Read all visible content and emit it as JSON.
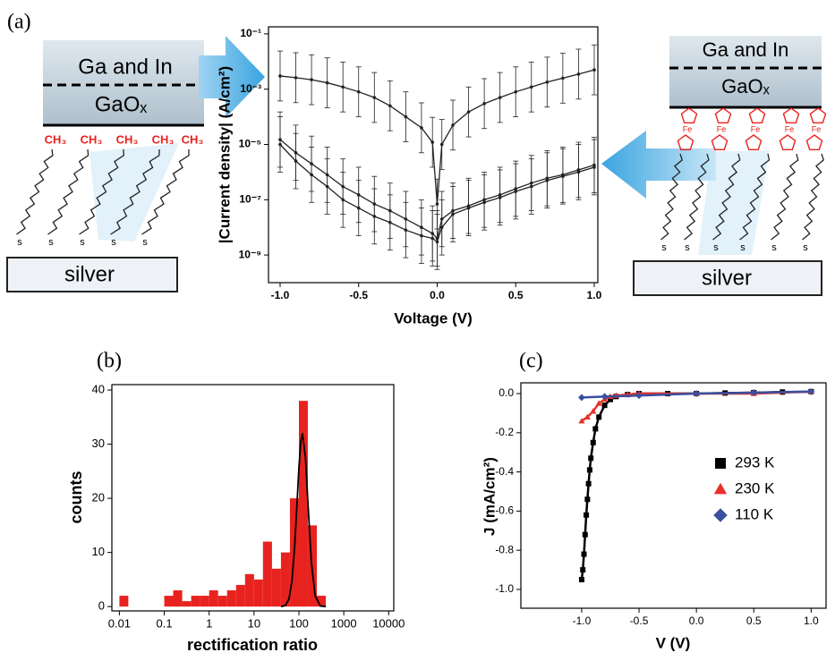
{
  "chart_data": [
    {
      "type": "line",
      "panel": "(a)",
      "xlabel": "Voltage (V)",
      "ylabel": "|Current density| (A/cm²)",
      "ylog": true,
      "xlim": [
        -1.074,
        1.023
      ],
      "ylim": [
        1e-10,
        0.18
      ],
      "xticks": [
        {
          "value": -1,
          "label": "-1.0"
        },
        {
          "value": -0.5,
          "label": "-0.5"
        },
        {
          "value": 0,
          "label": "0.0"
        },
        {
          "value": 0.5,
          "label": "0.5"
        },
        {
          "value": 1,
          "label": "1.0"
        }
      ],
      "yticks": [
        {
          "value": 0.1,
          "label": "10⁻¹"
        },
        {
          "value": 0.001,
          "label": "10⁻³"
        },
        {
          "value": 1e-05,
          "label": "10⁻⁵"
        },
        {
          "value": 1e-07,
          "label": "10⁻⁷"
        },
        {
          "value": 1e-09,
          "label": "10⁻⁹"
        }
      ],
      "x": [
        -1,
        -0.9,
        -0.8,
        -0.7,
        -0.6,
        -0.5,
        -0.4,
        -0.3,
        -0.2,
        -0.1,
        -0.03,
        0,
        0.03,
        0.1,
        0.2,
        0.3,
        0.4,
        0.5,
        0.6,
        0.7,
        0.8,
        0.9,
        1
      ],
      "series": [
        {
          "color": "#222222",
          "error_factor": 8,
          "values": [
            0.003,
            0.0026,
            0.0022,
            0.0017,
            0.0012,
            0.0008,
            0.0005,
            0.00025,
            0.0001,
            4e-05,
            1.2e-05,
            7e-08,
            1e-05,
            5e-05,
            0.00015,
            0.0003,
            0.0005,
            0.0008,
            0.0012,
            0.0018,
            0.0025,
            0.0035,
            0.005
          ]
        },
        {
          "color": "#222222",
          "error_factor": 10,
          "values": [
            1.5e-05,
            5e-06,
            2e-06,
            8e-07,
            3e-07,
            1.5e-07,
            7e-08,
            4e-08,
            2e-08,
            1e-08,
            6e-09,
            4e-09,
            2e-08,
            4e-08,
            6e-08,
            1e-07,
            1.5e-07,
            2.5e-07,
            4e-07,
            6e-07,
            8e-07,
            1.2e-06,
            1.8e-06
          ]
        },
        {
          "color": "#222222",
          "error_factor": 10,
          "values": [
            1e-05,
            2.5e-06,
            8e-07,
            3e-07,
            1e-07,
            5e-08,
            2.5e-08,
            1.5e-08,
            8e-09,
            5e-09,
            4e-09,
            3e-09,
            1e-08,
            3e-08,
            5e-08,
            8e-08,
            1.2e-07,
            2e-07,
            3e-07,
            5e-07,
            7e-07,
            1e-06,
            1.5e-06
          ]
        }
      ],
      "annotations": {
        "left_top": "Ga and In",
        "left_oxide": "GaOₓ",
        "left_groups": [
          "CH₃",
          "CH₃",
          "CH₃",
          "CH₃",
          "CH₃"
        ],
        "left_anchors": [
          "s",
          "s",
          "s",
          "s",
          "s"
        ],
        "left_substrate": "silver",
        "right_top": "Ga and In",
        "right_oxide": "GaOₓ",
        "right_fe": [
          "Fe",
          "Fe",
          "Fe",
          "Fe",
          "Fe"
        ],
        "right_anchors": [
          "s",
          "s",
          "s",
          "s",
          "s",
          "s"
        ],
        "right_substrate": "silver"
      }
    },
    {
      "type": "histogram",
      "panel": "(b)",
      "xlabel": "rectification ratio",
      "ylabel": "counts",
      "xlog": true,
      "xlim": [
        0.0068,
        13000
      ],
      "ylim": [
        -0.8,
        41
      ],
      "xticks": [
        0.01,
        0.1,
        1,
        10,
        100,
        1000,
        10000
      ],
      "yticks": [
        0,
        10,
        20,
        30,
        40
      ],
      "bins": [
        0.01,
        0.0158,
        0.0251,
        0.0398,
        0.0631,
        0.1,
        0.158,
        0.251,
        0.398,
        0.631,
        1,
        1.58,
        2.51,
        3.98,
        6.31,
        10,
        15.8,
        25.1,
        39.8,
        63.1,
        100,
        158,
        251,
        398,
        631,
        1000
      ],
      "values": [
        2,
        0,
        0,
        0,
        0,
        2,
        3,
        1,
        2,
        2,
        3,
        2,
        3,
        4,
        6,
        5,
        12,
        7,
        10,
        20,
        38,
        15,
        2,
        0,
        0
      ],
      "color": "#e8231f",
      "fit": {
        "color": "#000000",
        "x": [
          40,
          50,
          60,
          70,
          80,
          90,
          100,
          110,
          120,
          140,
          160,
          190,
          230,
          300,
          400
        ],
        "values": [
          0,
          0.2,
          1.4,
          4.7,
          10.9,
          18.5,
          25.6,
          30.4,
          32,
          27.5,
          18.7,
          8.1,
          2,
          0.1,
          0
        ]
      }
    },
    {
      "type": "scatter",
      "panel": "(c)",
      "xlabel": "V (V)",
      "ylabel": "J (mA/cm²)",
      "xlim": [
        -1.53,
        1.13
      ],
      "ylim": [
        -1.096,
        0.055
      ],
      "legend": "right",
      "xticks": [
        {
          "value": -1,
          "label": "-1.0"
        },
        {
          "value": -0.5,
          "label": "-0.5"
        },
        {
          "value": 0,
          "label": "0.0"
        },
        {
          "value": 0.5,
          "label": "0.5"
        },
        {
          "value": 1,
          "label": "1.0"
        }
      ],
      "yticks": [
        {
          "value": 0,
          "label": "0.0"
        },
        {
          "value": -0.2,
          "label": "-0.2"
        },
        {
          "value": -0.4,
          "label": "-0.4"
        },
        {
          "value": -0.6,
          "label": "-0.6"
        },
        {
          "value": -0.8,
          "label": "-0.8"
        },
        {
          "value": -1,
          "label": "-1.0"
        }
      ],
      "series": [
        {
          "name": "293 K",
          "color": "#000000",
          "marker": "square",
          "x": [
            -1,
            -0.99,
            -0.98,
            -0.97,
            -0.96,
            -0.95,
            -0.94,
            -0.93,
            -0.92,
            -0.9,
            -0.88,
            -0.85,
            -0.8,
            -0.75,
            -0.7,
            -0.6,
            -0.5,
            -0.25,
            0,
            0.25,
            0.5,
            0.75,
            1
          ],
          "values": [
            -0.95,
            -0.9,
            -0.82,
            -0.72,
            -0.62,
            -0.54,
            -0.46,
            -0.39,
            -0.33,
            -0.25,
            -0.18,
            -0.12,
            -0.06,
            -0.03,
            -0.015,
            -0.005,
            0,
            0,
            0,
            0.003,
            0.005,
            0.008,
            0.01
          ]
        },
        {
          "name": "230 K",
          "color": "#e8302a",
          "marker": "triangle",
          "x": [
            -1,
            -0.95,
            -0.9,
            -0.85,
            -0.8,
            -0.75,
            -0.7,
            -0.6,
            -0.5,
            0,
            0.5,
            1
          ],
          "values": [
            -0.14,
            -0.12,
            -0.09,
            -0.05,
            -0.03,
            -0.015,
            -0.01,
            -0.005,
            0,
            0,
            0,
            0.01
          ]
        },
        {
          "name": "110 K",
          "color": "#3b4fa0",
          "marker": "diamond",
          "x": [
            -1,
            -0.8,
            -0.5,
            0,
            0.5,
            1
          ],
          "values": [
            -0.02,
            -0.015,
            -0.01,
            0,
            0.005,
            0.01
          ]
        }
      ]
    }
  ]
}
